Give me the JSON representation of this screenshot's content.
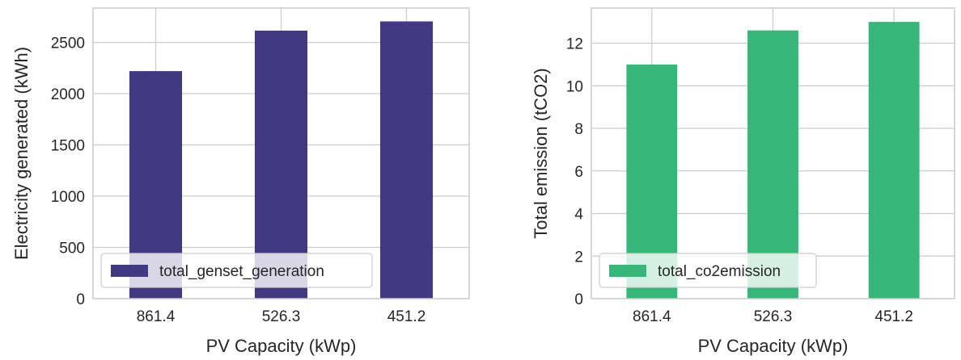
{
  "chart_data": [
    {
      "type": "bar",
      "categories": [
        "861.4",
        "526.3",
        "451.2"
      ],
      "series": [
        {
          "name": "total_genset_generation",
          "values": [
            2220,
            2615,
            2705
          ],
          "color": "#433983"
        }
      ],
      "xlabel": "PV Capacity (kWp)",
      "ylabel": "Electricity generated (kWh)",
      "ylim": [
        0,
        2835
      ],
      "yticks": [
        0,
        500,
        1000,
        1500,
        2000,
        2500
      ],
      "grid": true,
      "legend_position": "lower-left"
    },
    {
      "type": "bar",
      "categories": [
        "861.4",
        "526.3",
        "451.2"
      ],
      "series": [
        {
          "name": "total_co2emission",
          "values": [
            11.0,
            12.6,
            13.0
          ],
          "color": "#35b779"
        }
      ],
      "xlabel": "PV Capacity (kWp)",
      "ylabel": "Total emission (tCO2)",
      "ylim": [
        0,
        13.65
      ],
      "yticks": [
        0,
        2,
        4,
        6,
        8,
        10,
        12
      ],
      "grid": true,
      "legend_position": "lower-left"
    }
  ]
}
